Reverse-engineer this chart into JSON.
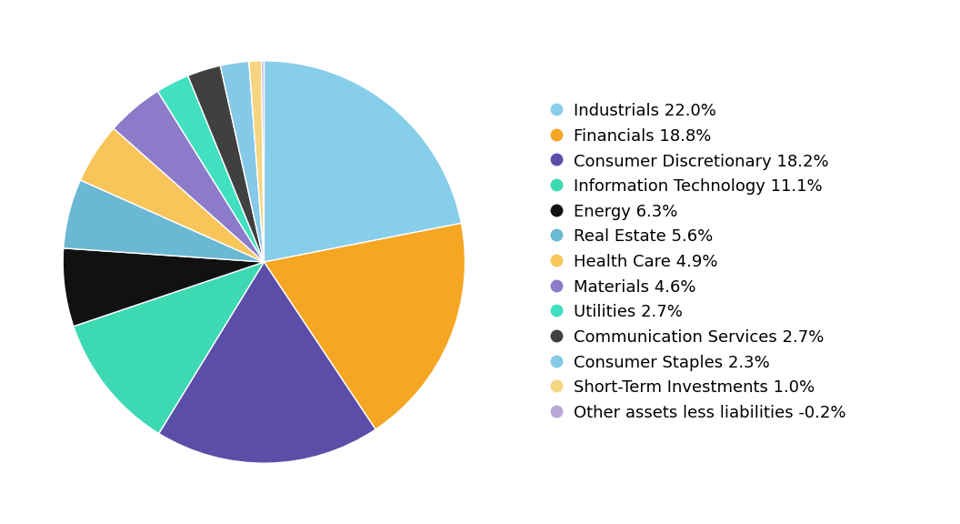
{
  "labels": [
    "Industrials 22.0%",
    "Financials 18.8%",
    "Consumer Discretionary 18.2%",
    "Information Technology 11.1%",
    "Energy 6.3%",
    "Real Estate 5.6%",
    "Health Care 4.9%",
    "Materials 4.6%",
    "Utilities 2.7%",
    "Communication Services 2.7%",
    "Consumer Staples 2.3%",
    "Short-Term Investments 1.0%",
    "Other assets less liabilities -0.2%"
  ],
  "values": [
    22.0,
    18.8,
    18.2,
    11.1,
    6.3,
    5.6,
    4.9,
    4.6,
    2.7,
    2.7,
    2.3,
    1.0,
    0.2
  ],
  "colors": [
    "#87CEEB",
    "#F5A623",
    "#5B4EA8",
    "#3DD9B3",
    "#111111",
    "#6BB8D4",
    "#F7C55A",
    "#8B7BC8",
    "#40E0C0",
    "#404040",
    "#85C8E8",
    "#F5D580",
    "#B8A8D8"
  ],
  "background_color": "#ffffff",
  "legend_fontsize": 13,
  "startangle": 90
}
